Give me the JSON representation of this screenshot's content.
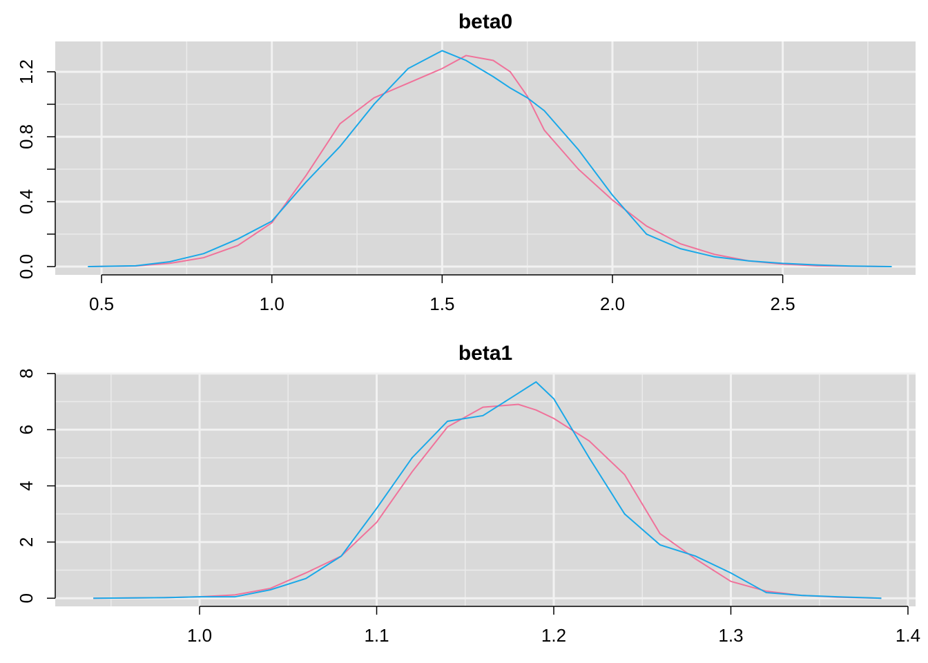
{
  "chart_data": [
    {
      "type": "line",
      "title": "beta0",
      "x": [
        0.46,
        0.6,
        0.7,
        0.8,
        0.9,
        1.0,
        1.1,
        1.2,
        1.3,
        1.4,
        1.5,
        1.57,
        1.65,
        1.7,
        1.75,
        1.8,
        1.9,
        2.0,
        2.1,
        2.2,
        2.3,
        2.4,
        2.5,
        2.6,
        2.7,
        2.82
      ],
      "series": [
        {
          "color": "#f0729a",
          "values": [
            0,
            0.004,
            0.02,
            0.055,
            0.13,
            0.27,
            0.56,
            0.88,
            1.04,
            1.13,
            1.22,
            1.3,
            1.27,
            1.2,
            1.05,
            0.84,
            0.6,
            0.41,
            0.25,
            0.14,
            0.075,
            0.035,
            0.015,
            0.005,
            0.002,
            0
          ]
        },
        {
          "color": "#1aa8e8",
          "values": [
            0,
            0.005,
            0.03,
            0.08,
            0.17,
            0.28,
            0.52,
            0.74,
            1.0,
            1.22,
            1.33,
            1.27,
            1.17,
            1.1,
            1.04,
            0.96,
            0.72,
            0.44,
            0.2,
            0.11,
            0.06,
            0.035,
            0.02,
            0.01,
            0.003,
            0
          ]
        }
      ],
      "xlim": [
        0.364,
        2.89
      ],
      "ylim": [
        -0.051,
        1.387
      ],
      "xticks": [
        0.5,
        {
          "value": 1,
          "label": "1.0"
        },
        1.5,
        {
          "value": 2,
          "label": "2.0"
        },
        2.5
      ],
      "yticks": [
        {
          "value": 0,
          "label": "0.0"
        },
        0.4,
        0.8,
        1.2
      ],
      "grid": true
    },
    {
      "type": "line",
      "title": "beta1",
      "x": [
        0.94,
        0.98,
        1.0,
        1.02,
        1.04,
        1.06,
        1.08,
        1.1,
        1.12,
        1.14,
        1.16,
        1.18,
        1.19,
        1.2,
        1.22,
        1.24,
        1.26,
        1.28,
        1.3,
        1.32,
        1.34,
        1.36,
        1.385
      ],
      "series": [
        {
          "color": "#f0729a",
          "values": [
            0,
            0.02,
            0.05,
            0.12,
            0.35,
            0.9,
            1.5,
            2.7,
            4.5,
            6.1,
            6.8,
            6.9,
            6.7,
            6.4,
            5.6,
            4.4,
            2.3,
            1.4,
            0.6,
            0.25,
            0.1,
            0.04,
            0
          ]
        },
        {
          "color": "#1aa8e8",
          "values": [
            0,
            0.02,
            0.05,
            0.05,
            0.3,
            0.7,
            1.5,
            3.2,
            5.0,
            6.3,
            6.5,
            7.3,
            7.7,
            7.1,
            5.0,
            3.0,
            1.9,
            1.5,
            0.9,
            0.2,
            0.1,
            0.05,
            0
          ]
        }
      ],
      "xlim": [
        0.9185,
        1.4043
      ],
      "ylim": [
        -0.29,
        8.02
      ],
      "xticks": [
        {
          "value": 1,
          "label": "1.0"
        },
        1.1,
        1.2,
        1.3,
        1.4
      ],
      "yticks": [
        0,
        2,
        4,
        6,
        8
      ],
      "grid": true
    }
  ]
}
